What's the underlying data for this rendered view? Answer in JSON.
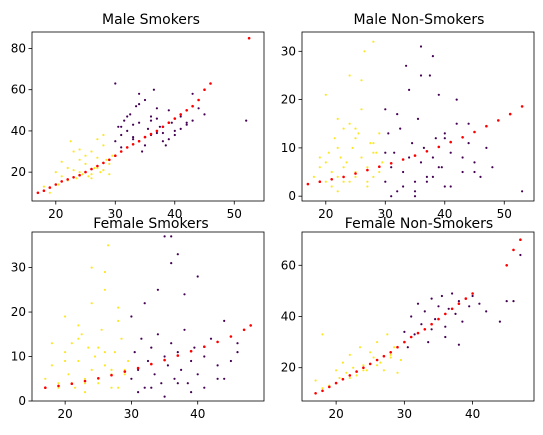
{
  "figure": {
    "background": "#ffffff",
    "colors": {
      "class_a": "#fde725",
      "class_b": "#440154",
      "fit": "#ff0000"
    }
  },
  "chart_data": [
    {
      "type": "scatter",
      "title": "Male Smokers",
      "xlim": [
        16,
        55
      ],
      "ylim": [
        6,
        88
      ],
      "xticks": [
        20,
        30,
        40,
        50
      ],
      "yticks": [
        20,
        40,
        60,
        80
      ],
      "class_a": {
        "x": [
          18,
          19,
          20,
          20.5,
          21,
          22,
          22.5,
          23,
          23.5,
          24,
          24.5,
          25,
          25.5,
          26,
          26.5,
          27,
          27.5,
          28,
          28.5,
          29,
          29.5,
          22,
          24,
          26,
          28,
          23,
          25,
          27,
          29,
          21,
          24,
          26,
          28,
          27
        ],
        "y": [
          13,
          10,
          20,
          14,
          18,
          22,
          35,
          21,
          17,
          26,
          19,
          24,
          18,
          30,
          22,
          27,
          20,
          33,
          26,
          19,
          28,
          16,
          20,
          17,
          21,
          30,
          28,
          36,
          24,
          25,
          31,
          19,
          38,
          22
        ]
      },
      "class_b": {
        "x": [
          30,
          30.5,
          31,
          31.5,
          32,
          32.5,
          33,
          33.5,
          34,
          34.5,
          35,
          35.5,
          36,
          36.5,
          37,
          37.5,
          38,
          38.5,
          39,
          39.5,
          40,
          41,
          42,
          43,
          44,
          45,
          30,
          31,
          32,
          33,
          34,
          35,
          36,
          37,
          38,
          31,
          33,
          35,
          37,
          39,
          41,
          43,
          34,
          36,
          38,
          40,
          42,
          52
        ],
        "y": [
          63,
          42,
          38,
          45,
          40,
          48,
          36,
          52,
          44,
          30,
          55,
          41,
          38,
          60,
          46,
          42,
          39,
          33,
          50,
          44,
          40,
          47,
          43,
          58,
          51,
          48,
          35,
          32,
          47,
          43,
          53,
          37,
          45,
          51,
          35,
          42,
          37,
          33,
          39,
          36,
          41,
          45,
          58,
          47,
          42,
          38,
          44,
          45
        ]
      },
      "outlier": {
        "x": [
          52.5
        ],
        "y": [
          85
        ]
      },
      "fit": {
        "x": [
          17,
          18,
          19,
          20,
          21,
          22,
          23,
          24,
          25,
          26,
          27,
          28,
          29,
          30,
          31,
          32,
          33,
          34,
          35,
          36,
          37,
          38,
          39,
          40,
          41,
          42,
          43,
          44,
          45,
          46
        ],
        "y": [
          10,
          11,
          12.5,
          14,
          15.5,
          16.5,
          17.5,
          18.5,
          20,
          21.5,
          23,
          24.5,
          26,
          28,
          30,
          32,
          33.5,
          35,
          37,
          38.5,
          40,
          42,
          44,
          46,
          48,
          50,
          52,
          55,
          60,
          63
        ]
      }
    },
    {
      "type": "scatter",
      "title": "Male Non-Smokers",
      "xlim": [
        16,
        55
      ],
      "ylim": [
        -1,
        34
      ],
      "xticks": [
        20,
        30,
        40,
        50
      ],
      "yticks": [
        0,
        10,
        20,
        30
      ],
      "class_a": {
        "x": [
          18,
          19,
          20,
          20.5,
          21,
          21.5,
          22,
          22.5,
          23,
          23.5,
          24,
          24.5,
          25,
          25.5,
          26,
          26.5,
          27,
          27.5,
          28,
          28.5,
          29,
          29.5,
          20,
          22,
          24,
          26,
          28,
          21,
          23,
          25,
          27,
          29,
          19,
          22,
          25,
          28,
          26,
          24,
          27,
          23,
          20,
          28,
          25,
          22
        ],
        "y": [
          4,
          6,
          3,
          9,
          5,
          12,
          4,
          8,
          14,
          7,
          3,
          10,
          5,
          13,
          8,
          30,
          6,
          11,
          4,
          9,
          13,
          7,
          21,
          16,
          25,
          18,
          32,
          2,
          3,
          4,
          2,
          5,
          8,
          10,
          12,
          9,
          24,
          15,
          3,
          6,
          7,
          11,
          14,
          1
        ]
      },
      "class_b": {
        "x": [
          30,
          30.5,
          31,
          31.5,
          32,
          32.5,
          33,
          33.5,
          34,
          34.5,
          35,
          35.5,
          36,
          36.5,
          37,
          37.5,
          38,
          38.5,
          39,
          39.5,
          40,
          41,
          42,
          43,
          44,
          45,
          46,
          47,
          48,
          30,
          32,
          34,
          36,
          38,
          40,
          42,
          44,
          31,
          33,
          35,
          37,
          39,
          41,
          43,
          45,
          36,
          38,
          40,
          30,
          35,
          53
        ],
        "y": [
          3,
          13,
          6,
          9,
          1,
          14,
          5,
          27,
          8,
          11,
          3,
          16,
          7,
          10,
          4,
          25,
          8,
          12,
          21,
          6,
          13,
          9,
          15,
          5,
          11,
          7,
          4,
          10,
          6,
          18,
          17,
          22,
          25,
          29,
          12,
          20,
          15,
          0,
          2,
          1,
          3,
          6,
          2,
          8,
          5,
          31,
          4,
          2,
          9,
          0,
          1
        ]
      },
      "fit": {
        "x": [
          17,
          19,
          21,
          23,
          25,
          27,
          29,
          31,
          33,
          35,
          37,
          39,
          41,
          43,
          45,
          47,
          49,
          51,
          53
        ],
        "y": [
          2.5,
          3,
          3.5,
          4,
          4.7,
          5.4,
          6.1,
          6.8,
          7.6,
          8.4,
          9.3,
          10.2,
          11.2,
          12.2,
          13.3,
          14.5,
          15.7,
          17,
          18.6
        ]
      }
    },
    {
      "type": "scatter",
      "title": "Female Smokers",
      "xlim": [
        15,
        50
      ],
      "ylim": [
        0,
        38
      ],
      "xticks": [
        20,
        30,
        40
      ],
      "yticks": [
        0,
        10,
        20,
        30
      ],
      "class_a": {
        "x": [
          17,
          18,
          19,
          20,
          20.5,
          21,
          21.5,
          22,
          22.5,
          23,
          23.5,
          24,
          24.5,
          25,
          25.5,
          26,
          26.5,
          27,
          27.5,
          28,
          28.5,
          29,
          29.5,
          18,
          20,
          22,
          24,
          26,
          28,
          19,
          21,
          23,
          25,
          27,
          29,
          22,
          26,
          24,
          20,
          28,
          25,
          27,
          23,
          26
        ],
        "y": [
          5,
          8,
          4,
          11,
          6,
          13,
          3,
          9,
          15,
          5,
          12,
          7,
          10,
          4,
          16,
          8,
          35,
          6,
          11,
          3,
          14,
          7,
          9,
          13,
          19,
          17,
          22,
          25,
          21,
          3,
          4,
          2,
          5,
          3,
          6,
          14,
          29,
          30,
          9,
          18,
          12,
          7,
          4,
          11
        ]
      },
      "class_b": {
        "x": [
          30,
          30.5,
          31,
          31.5,
          32,
          32.5,
          33,
          33.5,
          34,
          34.5,
          35,
          35.5,
          36,
          36.5,
          37,
          37.5,
          38,
          38.5,
          39,
          39.5,
          40,
          41,
          42,
          43,
          44,
          45,
          46,
          30,
          32,
          34,
          36,
          38,
          40,
          31,
          33,
          35,
          37,
          39,
          41,
          43,
          35,
          36,
          37,
          44,
          46
        ],
        "y": [
          5,
          11,
          7,
          14,
          3,
          9,
          12,
          6,
          15,
          4,
          10,
          8,
          13,
          5,
          11,
          7,
          16,
          4,
          9,
          12,
          6,
          10,
          14,
          8,
          5,
          9,
          11,
          19,
          22,
          25,
          31,
          24,
          28,
          2,
          3,
          1,
          4,
          2,
          3,
          5,
          37,
          37,
          33,
          18,
          13
        ]
      },
      "fit": {
        "x": [
          17,
          19,
          21,
          23,
          25,
          27,
          29,
          31,
          33,
          35,
          37,
          39,
          41,
          43,
          45,
          47,
          48
        ],
        "y": [
          3,
          3.4,
          3.9,
          4.5,
          5.1,
          5.8,
          6.6,
          7.4,
          8.3,
          9.2,
          10.2,
          11.2,
          12.2,
          13.3,
          14.5,
          16,
          17
        ]
      }
    },
    {
      "type": "scatter",
      "title": "Female Non-Smokers",
      "xlim": [
        15,
        49
      ],
      "ylim": [
        7,
        73
      ],
      "xticks": [
        20,
        30,
        40
      ],
      "yticks": [
        20,
        40,
        60
      ],
      "class_a": {
        "x": [
          17,
          18,
          19,
          20,
          20.5,
          21,
          21.5,
          22,
          22.5,
          23,
          23.5,
          24,
          24.5,
          25,
          25.5,
          26,
          26.5,
          27,
          27.5,
          28,
          28.5,
          29,
          29.5,
          18,
          20,
          22,
          24,
          26,
          28
        ],
        "y": [
          15,
          33,
          13,
          19,
          16,
          22,
          18,
          25,
          20,
          17,
          28,
          21,
          19,
          26,
          24,
          30,
          22,
          19,
          33,
          25,
          28,
          18,
          23,
          12,
          14,
          16,
          19,
          21,
          24
        ]
      },
      "class_b": {
        "x": [
          30,
          30.5,
          31,
          31.5,
          32,
          32.5,
          33,
          33.5,
          34,
          34.5,
          35,
          35.5,
          36,
          36.5,
          37,
          37.5,
          38,
          38.5,
          39,
          39.5,
          40,
          41,
          42,
          44,
          46,
          47,
          34,
          36,
          38,
          45
        ],
        "y": [
          34,
          28,
          40,
          33,
          45,
          37,
          42,
          30,
          47,
          39,
          44,
          48,
          36,
          43,
          49,
          41,
          46,
          38,
          47,
          44,
          48,
          45,
          42,
          38,
          46,
          64,
          35,
          32,
          29,
          46
        ]
      },
      "fit": {
        "x": [
          17,
          18,
          19,
          20,
          21,
          22,
          23,
          24,
          25,
          26,
          27,
          28,
          29,
          30,
          31,
          32,
          33,
          34,
          35,
          36,
          37,
          38,
          39,
          40,
          45,
          46,
          47
        ],
        "y": [
          10,
          11,
          12.5,
          14,
          15.5,
          17,
          18.5,
          20,
          21.5,
          23,
          24.5,
          26,
          28,
          30,
          32,
          33.5,
          35,
          37,
          39,
          41,
          43,
          45,
          47,
          49,
          60,
          66,
          70
        ]
      }
    }
  ]
}
